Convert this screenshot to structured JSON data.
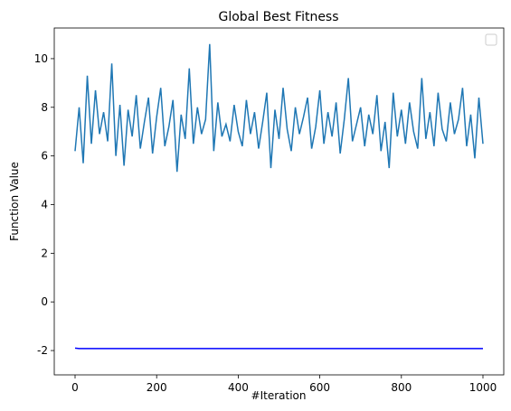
{
  "chart_data": {
    "type": "line",
    "title": "Global Best Fitness",
    "xlabel": "#Iteration",
    "ylabel": "Function Value",
    "xlim": [
      -51,
      1051
    ],
    "xticks": [
      0,
      200,
      400,
      600,
      800,
      1000
    ],
    "ylim": [
      -3.0,
      11.26
    ],
    "yticks": [
      -2,
      0,
      2,
      4,
      6,
      8,
      10
    ],
    "legend": "upper right",
    "grid": false,
    "series": [
      {
        "color": "#1f77b4",
        "x": [
          0,
          10,
          20,
          30,
          40,
          50,
          60,
          70,
          80,
          90,
          100,
          110,
          120,
          130,
          140,
          150,
          160,
          170,
          180,
          190,
          200,
          210,
          220,
          230,
          240,
          250,
          260,
          270,
          280,
          290,
          300,
          310,
          320,
          330,
          340,
          350,
          360,
          370,
          380,
          390,
          400,
          410,
          420,
          430,
          440,
          450,
          460,
          470,
          480,
          490,
          500,
          510,
          520,
          530,
          540,
          550,
          560,
          570,
          580,
          590,
          600,
          610,
          620,
          630,
          640,
          650,
          660,
          670,
          680,
          690,
          700,
          710,
          720,
          730,
          740,
          750,
          760,
          770,
          780,
          790,
          800,
          810,
          820,
          830,
          840,
          850,
          860,
          870,
          880,
          890,
          900,
          910,
          920,
          930,
          940,
          950,
          960,
          970,
          980,
          990,
          1000
        ],
        "values": [
          6.2,
          8.0,
          5.7,
          9.3,
          6.5,
          8.7,
          6.9,
          7.8,
          6.6,
          9.8,
          6.0,
          8.1,
          5.6,
          7.9,
          6.8,
          8.5,
          6.3,
          7.4,
          8.4,
          6.1,
          7.6,
          8.8,
          6.4,
          7.2,
          8.3,
          5.35,
          7.7,
          6.7,
          9.6,
          6.5,
          8.0,
          6.9,
          7.5,
          10.6,
          6.2,
          8.2,
          6.8,
          7.3,
          6.6,
          8.1,
          7.0,
          6.4,
          8.3,
          6.9,
          7.8,
          6.3,
          7.4,
          8.6,
          5.5,
          7.9,
          6.7,
          8.8,
          7.1,
          6.2,
          8.0,
          6.9,
          7.6,
          8.4,
          6.3,
          7.2,
          8.7,
          6.5,
          7.8,
          6.8,
          8.2,
          6.1,
          7.5,
          9.2,
          6.6,
          7.3,
          8.0,
          6.4,
          7.7,
          6.9,
          8.5,
          6.2,
          7.4,
          5.5,
          8.6,
          6.8,
          7.9,
          6.5,
          8.2,
          7.0,
          6.3,
          9.2,
          6.7,
          7.8,
          6.4,
          8.6,
          7.1,
          6.6,
          8.2,
          6.9,
          7.5,
          8.8,
          6.4,
          7.7,
          5.9,
          8.4,
          6.5
        ]
      },
      {
        "color": "#0000ff",
        "x": [
          0,
          10,
          1000
        ],
        "values": [
          -1.9,
          -1.92,
          -1.92
        ]
      }
    ]
  }
}
